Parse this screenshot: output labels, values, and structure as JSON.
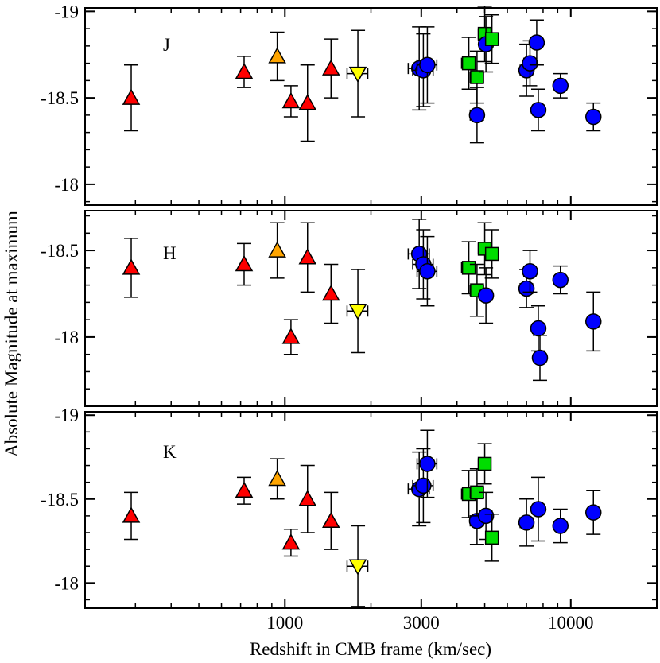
{
  "chart_data": {
    "type": "scatter",
    "xscale": "log",
    "xlim": [
      200,
      20000
    ],
    "xlabel": "Redshift in CMB frame (km/sec)",
    "ylabel": "Absolute Magnitude at maximum",
    "xticks": [
      {
        "value": 1000,
        "label": "1000"
      },
      {
        "value": 3000,
        "label": "3000"
      },
      {
        "value": 10000,
        "label": "10000"
      }
    ],
    "panels": [
      {
        "band": "J",
        "ylim": [
          -17.88,
          -19.02
        ],
        "yticks": [
          {
            "value": -19,
            "label": "-19"
          },
          {
            "value": -18.5,
            "label": "-18.5"
          },
          {
            "value": -18,
            "label": "-18"
          }
        ],
        "points": [
          {
            "x": 290,
            "y": -18.5,
            "err": 0.19,
            "xerr": 0,
            "marker": "triangle-up",
            "color": "#ff0000"
          },
          {
            "x": 720,
            "y": -18.65,
            "err": 0.09,
            "xerr": 0,
            "marker": "triangle-up",
            "color": "#ff0000"
          },
          {
            "x": 940,
            "y": -18.74,
            "err": 0.14,
            "xerr": 0,
            "marker": "triangle-up",
            "color": "#ffa500"
          },
          {
            "x": 1050,
            "y": -18.48,
            "err": 0.09,
            "xerr": 0,
            "marker": "triangle-up",
            "color": "#ff0000"
          },
          {
            "x": 1200,
            "y": -18.47,
            "err": 0.22,
            "xerr": 0,
            "marker": "triangle-up",
            "color": "#ff0000"
          },
          {
            "x": 1450,
            "y": -18.67,
            "err": 0.17,
            "xerr": 0,
            "marker": "triangle-up",
            "color": "#ff0000"
          },
          {
            "x": 1800,
            "y": -18.64,
            "err": 0.25,
            "xerr": 150,
            "marker": "triangle-down",
            "color": "#ffff00"
          },
          {
            "x": 2950,
            "y": -18.67,
            "err": 0.24,
            "xerr": 250,
            "marker": "circle",
            "color": "#0000ff"
          },
          {
            "x": 3050,
            "y": -18.66,
            "err": 0.21,
            "xerr": 250,
            "marker": "circle",
            "color": "#0000ff"
          },
          {
            "x": 3150,
            "y": -18.69,
            "err": 0.22,
            "xerr": 250,
            "marker": "circle",
            "color": "#0000ff"
          },
          {
            "x": 4400,
            "y": -18.7,
            "err": 0.15,
            "xerr": 250,
            "marker": "square",
            "color": "#00dd00"
          },
          {
            "x": 4700,
            "y": -18.62,
            "err": 0.15,
            "xerr": 250,
            "marker": "square",
            "color": "#00dd00"
          },
          {
            "x": 4700,
            "y": -18.4,
            "err": 0.16,
            "xerr": 250,
            "marker": "circle",
            "color": "#0000ff"
          },
          {
            "x": 5000,
            "y": -18.87,
            "err": 0.16,
            "xerr": 250,
            "marker": "square",
            "color": "#00dd00"
          },
          {
            "x": 5050,
            "y": -18.81,
            "err": 0.16,
            "xerr": 250,
            "marker": "circle",
            "color": "#0000ff"
          },
          {
            "x": 5300,
            "y": -18.84,
            "err": 0.14,
            "xerr": 250,
            "marker": "square",
            "color": "#00dd00"
          },
          {
            "x": 7000,
            "y": -18.66,
            "err": 0.15,
            "xerr": 350,
            "marker": "circle",
            "color": "#0000ff"
          },
          {
            "x": 7200,
            "y": -18.7,
            "err": 0.13,
            "xerr": 350,
            "marker": "circle",
            "color": "#0000ff"
          },
          {
            "x": 7600,
            "y": -18.82,
            "err": 0.13,
            "xerr": 350,
            "marker": "circle",
            "color": "#0000ff"
          },
          {
            "x": 7700,
            "y": -18.43,
            "err": 0.12,
            "xerr": 350,
            "marker": "circle",
            "color": "#0000ff"
          },
          {
            "x": 9200,
            "y": -18.57,
            "err": 0.07,
            "xerr": 400,
            "marker": "circle",
            "color": "#0000ff"
          },
          {
            "x": 12000,
            "y": -18.39,
            "err": 0.08,
            "xerr": 500,
            "marker": "circle",
            "color": "#0000ff"
          }
        ]
      },
      {
        "band": "H",
        "ylim": [
          -17.6,
          -18.73
        ],
        "yticks": [
          {
            "value": -18.5,
            "label": "-18.5"
          },
          {
            "value": -18,
            "label": "-18"
          }
        ],
        "points": [
          {
            "x": 290,
            "y": -18.4,
            "err": 0.17,
            "xerr": 0,
            "marker": "triangle-up",
            "color": "#ff0000"
          },
          {
            "x": 720,
            "y": -18.42,
            "err": 0.12,
            "xerr": 0,
            "marker": "triangle-up",
            "color": "#ff0000"
          },
          {
            "x": 940,
            "y": -18.5,
            "err": 0.16,
            "xerr": 0,
            "marker": "triangle-up",
            "color": "#ffa500"
          },
          {
            "x": 1050,
            "y": -18.0,
            "err": 0.1,
            "xerr": 0,
            "marker": "triangle-up",
            "color": "#ff0000"
          },
          {
            "x": 1200,
            "y": -18.46,
            "err": 0.2,
            "xerr": 0,
            "marker": "triangle-up",
            "color": "#ff0000"
          },
          {
            "x": 1450,
            "y": -18.25,
            "err": 0.17,
            "xerr": 0,
            "marker": "triangle-up",
            "color": "#ff0000"
          },
          {
            "x": 1800,
            "y": -18.15,
            "err": 0.24,
            "xerr": 150,
            "marker": "triangle-down",
            "color": "#ffff00"
          },
          {
            "x": 2950,
            "y": -18.48,
            "err": 0.2,
            "xerr": 250,
            "marker": "circle",
            "color": "#0000ff"
          },
          {
            "x": 3050,
            "y": -18.42,
            "err": 0.2,
            "xerr": 250,
            "marker": "circle",
            "color": "#0000ff"
          },
          {
            "x": 3150,
            "y": -18.38,
            "err": 0.2,
            "xerr": 250,
            "marker": "circle",
            "color": "#0000ff"
          },
          {
            "x": 4400,
            "y": -18.4,
            "err": 0.15,
            "xerr": 250,
            "marker": "square",
            "color": "#00dd00"
          },
          {
            "x": 4700,
            "y": -18.27,
            "err": 0.15,
            "xerr": 250,
            "marker": "square",
            "color": "#00dd00"
          },
          {
            "x": 5000,
            "y": -18.51,
            "err": 0.15,
            "xerr": 250,
            "marker": "square",
            "color": "#00dd00"
          },
          {
            "x": 5050,
            "y": -18.24,
            "err": 0.16,
            "xerr": 250,
            "marker": "circle",
            "color": "#0000ff"
          },
          {
            "x": 5300,
            "y": -18.48,
            "err": 0.14,
            "xerr": 250,
            "marker": "square",
            "color": "#00dd00"
          },
          {
            "x": 7000,
            "y": -18.28,
            "err": 0.11,
            "xerr": 350,
            "marker": "circle",
            "color": "#0000ff"
          },
          {
            "x": 7200,
            "y": -18.38,
            "err": 0.12,
            "xerr": 350,
            "marker": "circle",
            "color": "#0000ff"
          },
          {
            "x": 7700,
            "y": -18.05,
            "err": 0.13,
            "xerr": 350,
            "marker": "circle",
            "color": "#0000ff"
          },
          {
            "x": 7800,
            "y": -17.88,
            "err": 0.13,
            "xerr": 350,
            "marker": "circle",
            "color": "#0000ff"
          },
          {
            "x": 9200,
            "y": -18.33,
            "err": 0.08,
            "xerr": 400,
            "marker": "circle",
            "color": "#0000ff"
          },
          {
            "x": 12000,
            "y": -18.09,
            "err": 0.17,
            "xerr": 500,
            "marker": "circle",
            "color": "#0000ff"
          }
        ]
      },
      {
        "band": "K",
        "ylim": [
          -17.85,
          -19.02
        ],
        "yticks": [
          {
            "value": -19,
            "label": "-19"
          },
          {
            "value": -18.5,
            "label": "-18.5"
          },
          {
            "value": -18,
            "label": "-18"
          }
        ],
        "points": [
          {
            "x": 290,
            "y": -18.4,
            "err": 0.14,
            "xerr": 0,
            "marker": "triangle-up",
            "color": "#ff0000"
          },
          {
            "x": 720,
            "y": -18.55,
            "err": 0.08,
            "xerr": 0,
            "marker": "triangle-up",
            "color": "#ff0000"
          },
          {
            "x": 940,
            "y": -18.62,
            "err": 0.12,
            "xerr": 0,
            "marker": "triangle-up",
            "color": "#ffa500"
          },
          {
            "x": 1050,
            "y": -18.24,
            "err": 0.08,
            "xerr": 0,
            "marker": "triangle-up",
            "color": "#ff0000"
          },
          {
            "x": 1200,
            "y": -18.5,
            "err": 0.2,
            "xerr": 0,
            "marker": "triangle-up",
            "color": "#ff0000"
          },
          {
            "x": 1450,
            "y": -18.37,
            "err": 0.17,
            "xerr": 0,
            "marker": "triangle-up",
            "color": "#ff0000"
          },
          {
            "x": 1800,
            "y": -18.1,
            "err": 0.24,
            "xerr": 150,
            "marker": "triangle-down",
            "color": "#ffff00"
          },
          {
            "x": 2950,
            "y": -18.56,
            "err": 0.22,
            "xerr": 250,
            "marker": "circle",
            "color": "#0000ff"
          },
          {
            "x": 3050,
            "y": -18.58,
            "err": 0.22,
            "xerr": 250,
            "marker": "circle",
            "color": "#0000ff"
          },
          {
            "x": 3150,
            "y": -18.71,
            "err": 0.2,
            "xerr": 250,
            "marker": "circle",
            "color": "#0000ff"
          },
          {
            "x": 4400,
            "y": -18.53,
            "err": 0.14,
            "xerr": 250,
            "marker": "square",
            "color": "#00dd00"
          },
          {
            "x": 4700,
            "y": -18.37,
            "err": 0.14,
            "xerr": 250,
            "marker": "circle",
            "color": "#0000ff"
          },
          {
            "x": 4700,
            "y": -18.54,
            "err": 0.14,
            "xerr": 250,
            "marker": "square",
            "color": "#00dd00"
          },
          {
            "x": 5000,
            "y": -18.71,
            "err": 0.12,
            "xerr": 250,
            "marker": "square",
            "color": "#00dd00"
          },
          {
            "x": 5050,
            "y": -18.4,
            "err": 0.14,
            "xerr": 250,
            "marker": "circle",
            "color": "#0000ff"
          },
          {
            "x": 5300,
            "y": -18.27,
            "err": 0.14,
            "xerr": 250,
            "marker": "square",
            "color": "#00dd00"
          },
          {
            "x": 7000,
            "y": -18.36,
            "err": 0.14,
            "xerr": 350,
            "marker": "circle",
            "color": "#0000ff"
          },
          {
            "x": 7700,
            "y": -18.44,
            "err": 0.19,
            "xerr": 350,
            "marker": "circle",
            "color": "#0000ff"
          },
          {
            "x": 9200,
            "y": -18.34,
            "err": 0.1,
            "xerr": 400,
            "marker": "circle",
            "color": "#0000ff"
          },
          {
            "x": 12000,
            "y": -18.42,
            "err": 0.13,
            "xerr": 500,
            "marker": "circle",
            "color": "#0000ff"
          }
        ]
      }
    ]
  }
}
